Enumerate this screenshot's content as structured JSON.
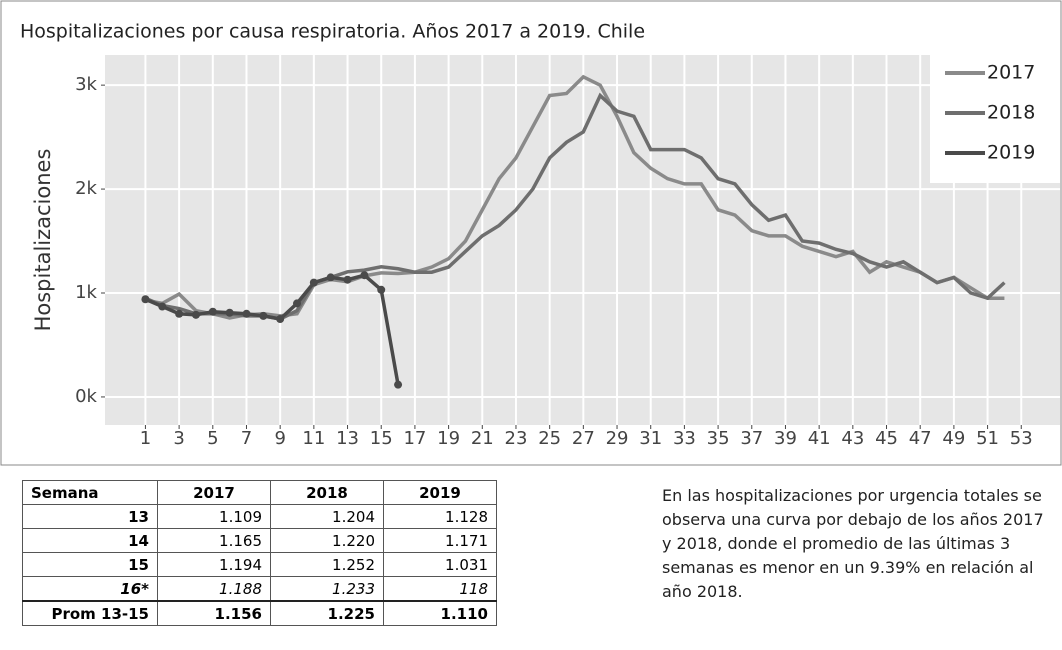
{
  "chart_data": {
    "type": "line",
    "title": "Hospitalizaciones por causa respiratoria. Años 2017 a 2019. Chile",
    "y_label": "Hospitalizaciones",
    "x": [
      1,
      2,
      3,
      4,
      5,
      6,
      7,
      8,
      9,
      10,
      11,
      12,
      13,
      14,
      15,
      16,
      17,
      18,
      19,
      20,
      21,
      22,
      23,
      24,
      25,
      26,
      27,
      28,
      29,
      30,
      31,
      32,
      33,
      34,
      35,
      36,
      37,
      38,
      39,
      40,
      41,
      42,
      43,
      44,
      45,
      46,
      47,
      48,
      49,
      50,
      51,
      52
    ],
    "xlim": [
      -1.4,
      55.3
    ],
    "xticks": [
      1,
      3,
      5,
      7,
      9,
      11,
      13,
      15,
      17,
      19,
      21,
      23,
      25,
      27,
      29,
      31,
      33,
      35,
      37,
      39,
      41,
      43,
      45,
      47,
      49,
      51,
      53
    ],
    "ylim": [
      -270,
      3290
    ],
    "yticks": [
      {
        "value": 0,
        "label": "0k"
      },
      {
        "value": 1000,
        "label": "1k"
      },
      {
        "value": 2000,
        "label": "2k"
      },
      {
        "value": 3000,
        "label": "3k"
      }
    ],
    "grid": true,
    "legend": "top-right",
    "series": [
      {
        "name": "2017",
        "color": "#8a8a8a",
        "values": [
          930,
          900,
          990,
          830,
          800,
          760,
          790,
          800,
          780,
          800,
          1080,
          1130,
          1109,
          1165,
          1194,
          1188,
          1200,
          1250,
          1330,
          1500,
          1800,
          2100,
          2300,
          2600,
          2900,
          2920,
          3080,
          3000,
          2700,
          2350,
          2200,
          2100,
          2050,
          2050,
          1800,
          1750,
          1600,
          1550,
          1550,
          1450,
          1400,
          1350,
          1400,
          1200,
          1300,
          1250,
          1200,
          1100,
          1150,
          1050,
          950,
          950
        ]
      },
      {
        "name": "2018",
        "color": "#6e6e6e",
        "values": [
          950,
          880,
          850,
          800,
          800,
          800,
          780,
          780,
          750,
          830,
          1100,
          1150,
          1204,
          1220,
          1252,
          1233,
          1200,
          1200,
          1250,
          1400,
          1550,
          1650,
          1800,
          2000,
          2300,
          2450,
          2550,
          2900,
          2750,
          2700,
          2380,
          2380,
          2380,
          2300,
          2100,
          2050,
          1850,
          1700,
          1750,
          1500,
          1480,
          1420,
          1380,
          1300,
          1250,
          1300,
          1200,
          1100,
          1150,
          1000,
          950,
          1100
        ]
      },
      {
        "name": "2019",
        "color": "#4a4a4a",
        "values": [
          940,
          870,
          800,
          790,
          820,
          810,
          800,
          780,
          750,
          900,
          1100,
          1150,
          1128,
          1171,
          1031,
          118,
          null,
          null,
          null,
          null,
          null,
          null,
          null,
          null,
          null,
          null,
          null,
          null,
          null,
          null,
          null,
          null,
          null,
          null,
          null,
          null,
          null,
          null,
          null,
          null,
          null,
          null,
          null,
          null,
          null,
          null,
          null,
          null,
          null,
          null,
          null,
          null
        ]
      }
    ]
  },
  "table": {
    "header": [
      "Semana",
      "2017",
      "2018",
      "2019"
    ],
    "rows": [
      [
        "13",
        "1.109",
        "1.204",
        "1.128"
      ],
      [
        "14",
        "1.165",
        "1.220",
        "1.171"
      ],
      [
        "15",
        "1.194",
        "1.252",
        "1.031"
      ],
      [
        "16*",
        "1.188",
        "1.233",
        "118"
      ],
      [
        "Prom 13-15",
        "1.156",
        "1.225",
        "1.110"
      ]
    ]
  },
  "note": "En las hospitalizaciones por urgencia totales se observa una curva por debajo de los años 2017 y 2018, donde el promedio de las últimas 3 semanas es menor en un 9.39% en relación al año 2018."
}
